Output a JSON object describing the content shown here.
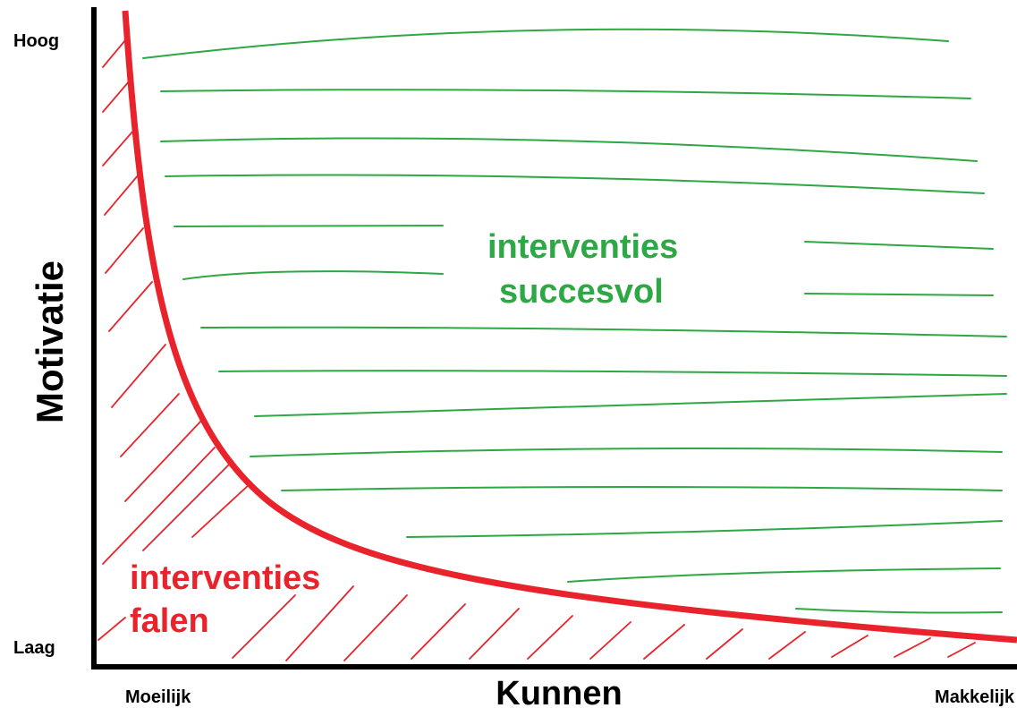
{
  "axes": {
    "y_label": "Motivatie",
    "y_high": "Hoog",
    "y_low": "Laag",
    "x_label": "Kunnen",
    "x_low": "Moeilijk",
    "x_high": "Makkelijk"
  },
  "regions": {
    "success": [
      "interventies",
      "succesvol"
    ],
    "fail": [
      "interventies",
      "falen"
    ]
  }
}
